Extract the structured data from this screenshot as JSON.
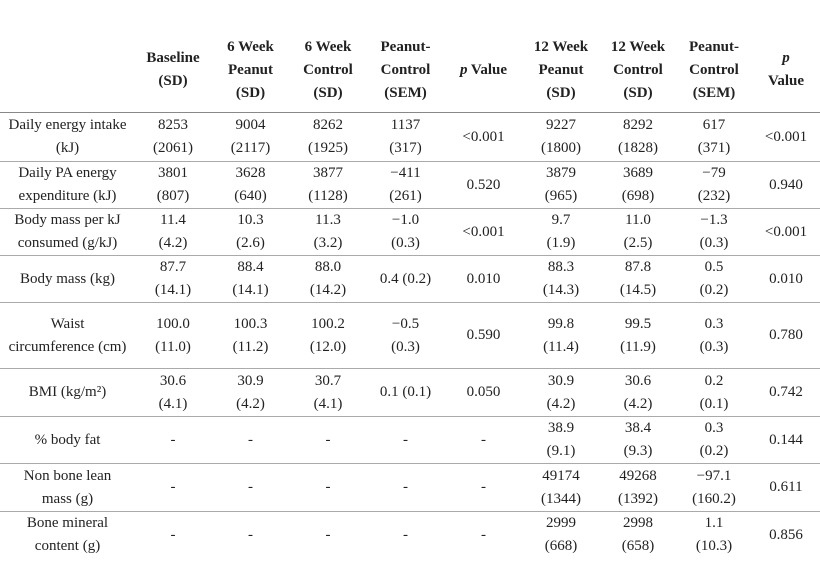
{
  "table": {
    "headers": [
      [
        "Baseline",
        "(SD)"
      ],
      [
        "6 Week",
        "Peanut",
        "(SD)"
      ],
      [
        "6 Week",
        "Control",
        "(SD)"
      ],
      [
        "Peanut-",
        "Control",
        "(SEM)"
      ],
      {
        "italic": "p",
        "rest": "Value"
      },
      [
        "12 Week",
        "Peanut",
        "(SD)"
      ],
      [
        "12 Week",
        "Control",
        "(SD)"
      ],
      [
        "Peanut-",
        "Control",
        "(SEM)"
      ],
      {
        "italic": "p",
        "rest": "Value"
      }
    ],
    "rows": [
      {
        "label": "Daily energy intake (kJ)",
        "cells": [
          [
            "8253",
            "(2061)"
          ],
          [
            "9004",
            "(2117)"
          ],
          [
            "8262",
            "(1925)"
          ],
          [
            "1137",
            "(317)"
          ],
          "<0.001",
          [
            "9227",
            "(1800)"
          ],
          [
            "8292",
            "(1828)"
          ],
          [
            "617",
            "(371)"
          ],
          "<0.001"
        ]
      },
      {
        "label": "Daily PA energy expenditure (kJ)",
        "cells": [
          [
            "3801",
            "(807)"
          ],
          [
            "3628",
            "(640)"
          ],
          [
            "3877",
            "(1128)"
          ],
          [
            "−411",
            "(261)"
          ],
          "0.520",
          [
            "3879",
            "(965)"
          ],
          [
            "3689",
            "(698)"
          ],
          [
            "−79",
            "(232)"
          ],
          "0.940"
        ]
      },
      {
        "label": "Body mass per kJ consumed (g/kJ)",
        "cells": [
          [
            "11.4",
            "(4.2)"
          ],
          [
            "10.3",
            "(2.6)"
          ],
          [
            "11.3",
            "(3.2)"
          ],
          [
            "−1.0",
            "(0.3)"
          ],
          "<0.001",
          [
            "9.7",
            "(1.9)"
          ],
          [
            "11.0",
            "(2.5)"
          ],
          [
            "−1.3",
            "(0.3)"
          ],
          "<0.001"
        ]
      },
      {
        "label": "Body mass (kg)",
        "cells": [
          [
            "87.7",
            "(14.1)"
          ],
          [
            "88.4",
            "(14.1)"
          ],
          [
            "88.0",
            "(14.2)"
          ],
          "0.4 (0.2)",
          "0.010",
          [
            "88.3",
            "(14.3)"
          ],
          [
            "87.8",
            "(14.5)"
          ],
          [
            "0.5",
            "(0.2)"
          ],
          "0.010"
        ]
      },
      {
        "label": "Waist circumference (cm)",
        "cells": [
          [
            "100.0",
            "(11.0)"
          ],
          [
            "100.3",
            "(11.2)"
          ],
          [
            "100.2",
            "(12.0)"
          ],
          [
            "−0.5",
            "(0.3)"
          ],
          "0.590",
          [
            "99.8",
            "(11.4)"
          ],
          [
            "99.5",
            "(11.9)"
          ],
          [
            "0.3",
            "(0.3)"
          ],
          "0.780"
        ]
      },
      {
        "label": "BMI (kg/m²)",
        "cells": [
          [
            "30.6",
            "(4.1)"
          ],
          [
            "30.9",
            "(4.2)"
          ],
          [
            "30.7",
            "(4.1)"
          ],
          "0.1 (0.1)",
          "0.050",
          [
            "30.9",
            "(4.2)"
          ],
          [
            "30.6",
            "(4.2)"
          ],
          [
            "0.2",
            "(0.1)"
          ],
          "0.742"
        ]
      },
      {
        "label": "% body fat",
        "cells": [
          "-",
          "-",
          "-",
          "-",
          "-",
          [
            "38.9",
            "(9.1)"
          ],
          [
            "38.4",
            "(9.3)"
          ],
          [
            "0.3",
            "(0.2)"
          ],
          "0.144"
        ]
      },
      {
        "label": "Non bone lean mass (g)",
        "cells": [
          "-",
          "-",
          "-",
          "-",
          "-",
          [
            "49174",
            "(1344)"
          ],
          [
            "49268",
            "(1392)"
          ],
          [
            "−97.1",
            "(160.2)"
          ],
          "0.611"
        ]
      },
      {
        "label": "Bone mineral content (g)",
        "cells": [
          "-",
          "-",
          "-",
          "-",
          "-",
          [
            "2999",
            "(668)"
          ],
          [
            "2998",
            "(658)"
          ],
          [
            "1.1",
            "(10.3)"
          ],
          "0.856"
        ]
      }
    ]
  }
}
